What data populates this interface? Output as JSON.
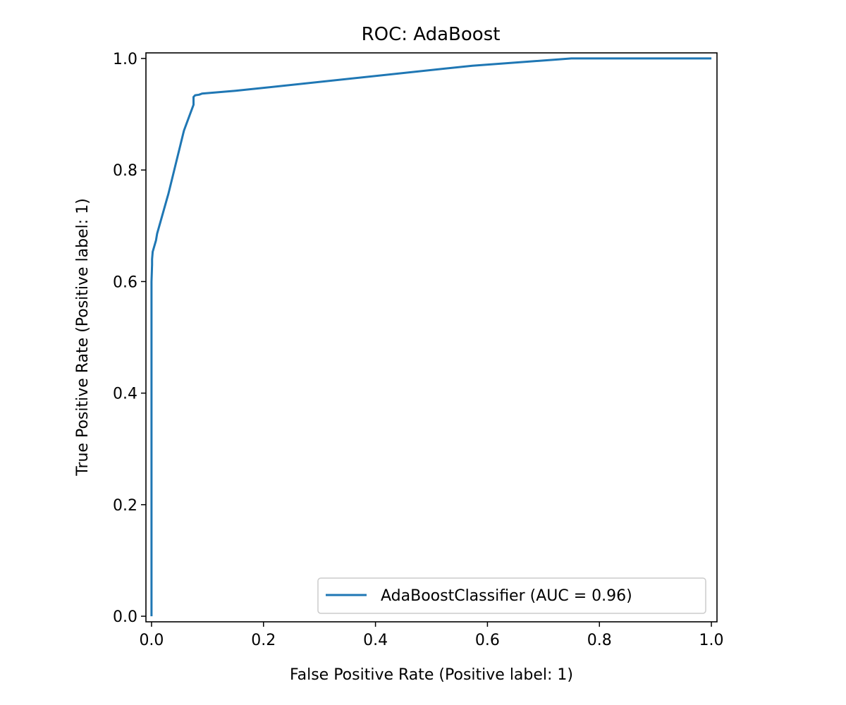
{
  "chart_data": {
    "type": "line",
    "title": "ROC: AdaBoost",
    "xlabel": "False Positive Rate (Positive label: 1)",
    "ylabel": "True Positive Rate (Positive label: 1)",
    "xlim": [
      -0.01,
      1.01
    ],
    "ylim": [
      -0.01,
      1.01
    ],
    "xticks": [
      "0.0",
      "0.2",
      "0.4",
      "0.6",
      "0.8",
      "1.0"
    ],
    "yticks": [
      "0.0",
      "0.2",
      "0.4",
      "0.6",
      "0.8",
      "1.0"
    ],
    "grid": false,
    "legend_position": "lower-right",
    "series": [
      {
        "name": "AdaBoostClassifier (AUC = 0.96)",
        "color": "#1f77b4",
        "x": [
          0.0,
          0.0,
          0.001,
          0.001,
          0.002,
          0.002,
          0.008,
          0.01,
          0.028,
          0.03,
          0.057,
          0.058,
          0.075,
          0.075,
          0.078,
          0.085,
          0.09,
          0.15,
          0.573,
          0.75,
          1.0
        ],
        "y": [
          0.0,
          0.6,
          0.63,
          0.64,
          0.652,
          0.653,
          0.674,
          0.686,
          0.75,
          0.757,
          0.867,
          0.871,
          0.917,
          0.931,
          0.934,
          0.935,
          0.937,
          0.942,
          0.987,
          1.0,
          1.0
        ]
      }
    ]
  }
}
